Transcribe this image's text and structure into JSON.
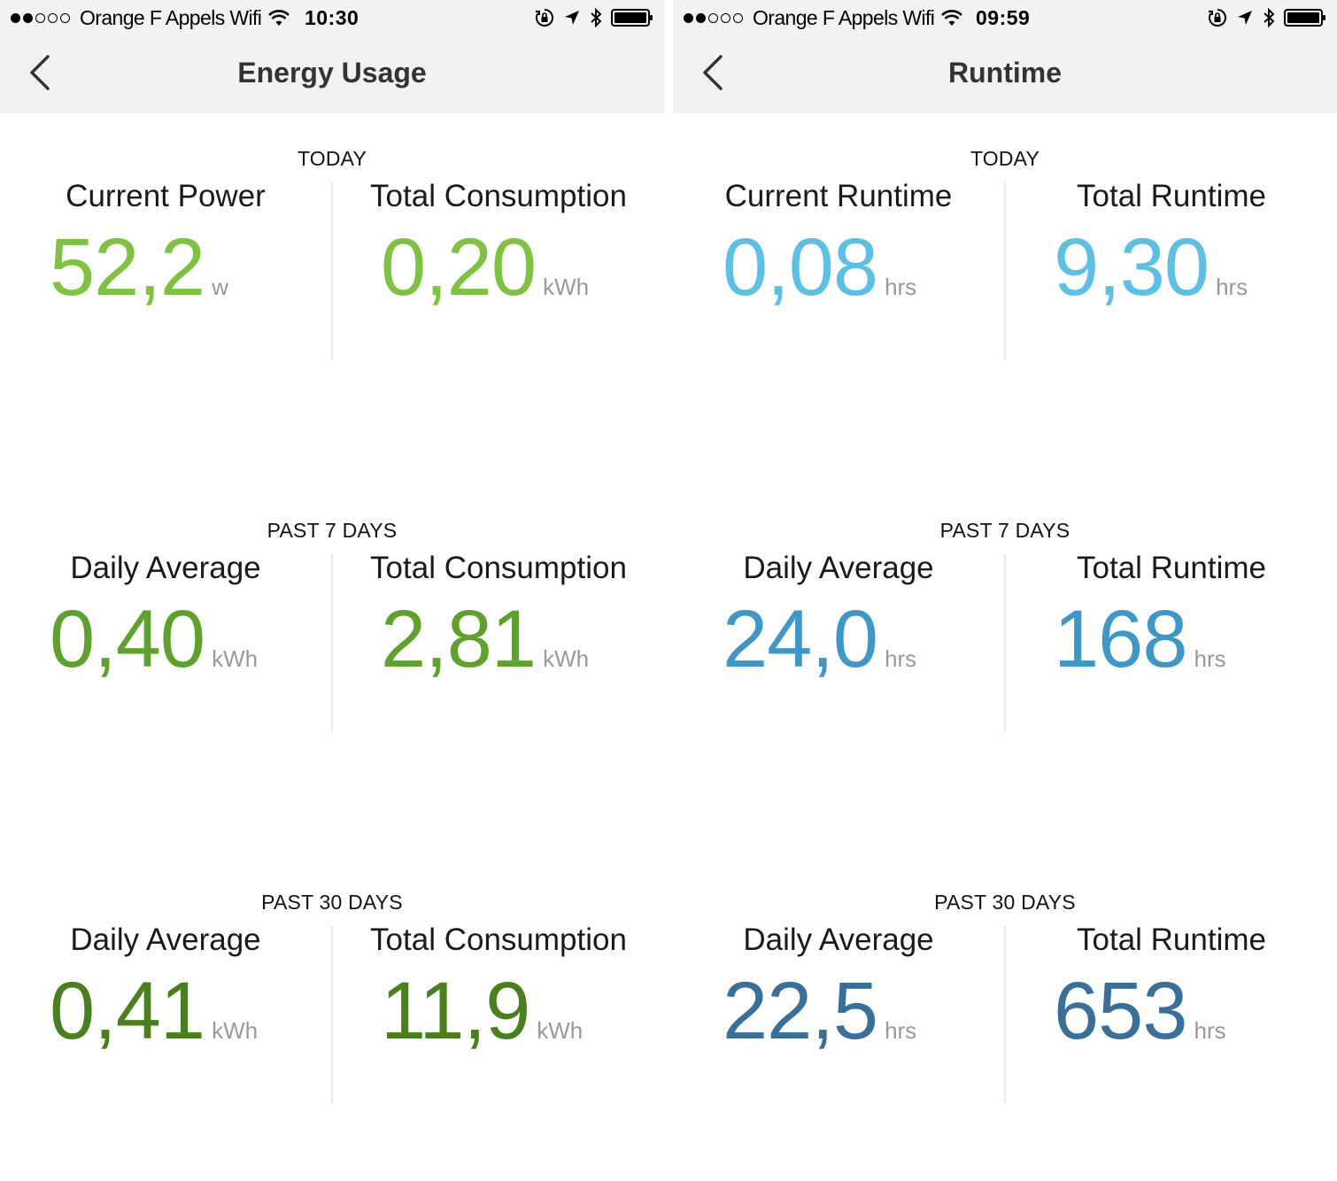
{
  "left": {
    "status": {
      "carrier": "Orange F Appels Wifi",
      "time": "10:30"
    },
    "nav": {
      "title": "Energy Usage"
    },
    "sections": [
      {
        "label": "TODAY",
        "color": "#7fc241",
        "metrics": [
          {
            "title": "Current Power",
            "value": "52,2",
            "unit": "w"
          },
          {
            "title": "Total Consumption",
            "value": "0,20",
            "unit": "kWh"
          }
        ]
      },
      {
        "label": "PAST 7 DAYS",
        "color": "#5ea12d",
        "metrics": [
          {
            "title": "Daily Average",
            "value": "0,40",
            "unit": "kWh"
          },
          {
            "title": "Total Consumption",
            "value": "2,81",
            "unit": "kWh"
          }
        ]
      },
      {
        "label": "PAST 30 DAYS",
        "color": "#4a7f1d",
        "metrics": [
          {
            "title": "Daily Average",
            "value": "0,41",
            "unit": "kWh"
          },
          {
            "title": "Total Consumption",
            "value": "11,9",
            "unit": "kWh"
          }
        ]
      }
    ]
  },
  "right": {
    "status": {
      "carrier": "Orange F Appels Wifi",
      "time": "09:59"
    },
    "nav": {
      "title": "Runtime"
    },
    "sections": [
      {
        "label": "TODAY",
        "color": "#5bc0e3",
        "metrics": [
          {
            "title": "Current Runtime",
            "value": "0,08",
            "unit": "hrs"
          },
          {
            "title": "Total Runtime",
            "value": "9,30",
            "unit": "hrs"
          }
        ]
      },
      {
        "label": "PAST 7 DAYS",
        "color": "#3f97c7",
        "metrics": [
          {
            "title": "Daily Average",
            "value": "24,0",
            "unit": "hrs"
          },
          {
            "title": "Total Runtime",
            "value": "168",
            "unit": "hrs"
          }
        ]
      },
      {
        "label": "PAST 30 DAYS",
        "color": "#3a6f99",
        "metrics": [
          {
            "title": "Daily Average",
            "value": "22,5",
            "unit": "hrs"
          },
          {
            "title": "Total Runtime",
            "value": "653",
            "unit": "hrs"
          }
        ]
      }
    ]
  }
}
